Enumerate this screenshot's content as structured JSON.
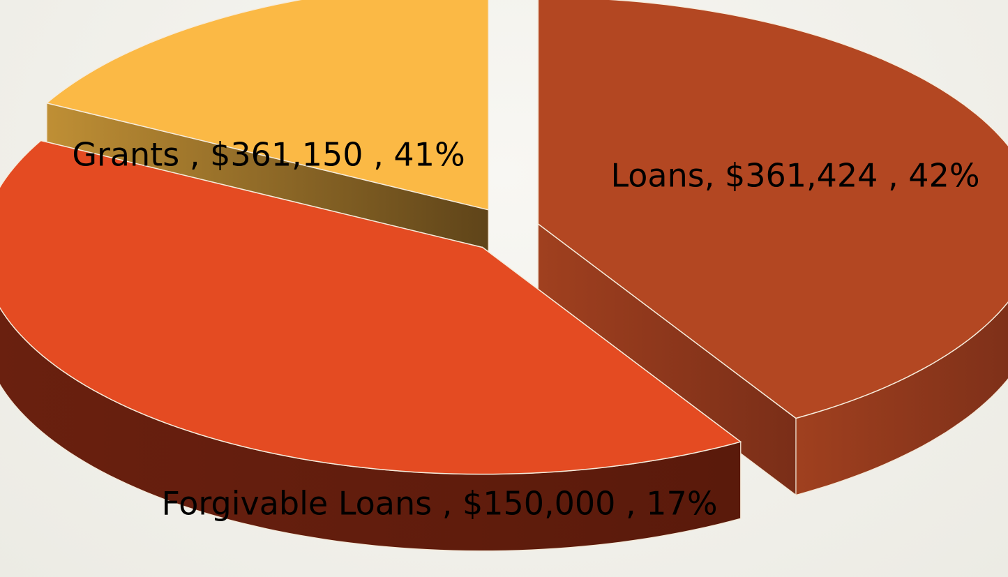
{
  "chart_data": {
    "type": "pie",
    "values": [
      361150,
      361424,
      150000
    ],
    "value_labels": [
      "Grants , $361,150 , 41%",
      "Loans, $361,424 , 42%",
      "Forgivable Loans , $150,000 , 17%"
    ],
    "colors": [
      "#b34722",
      "#e44b22",
      "#fbb945"
    ]
  }
}
